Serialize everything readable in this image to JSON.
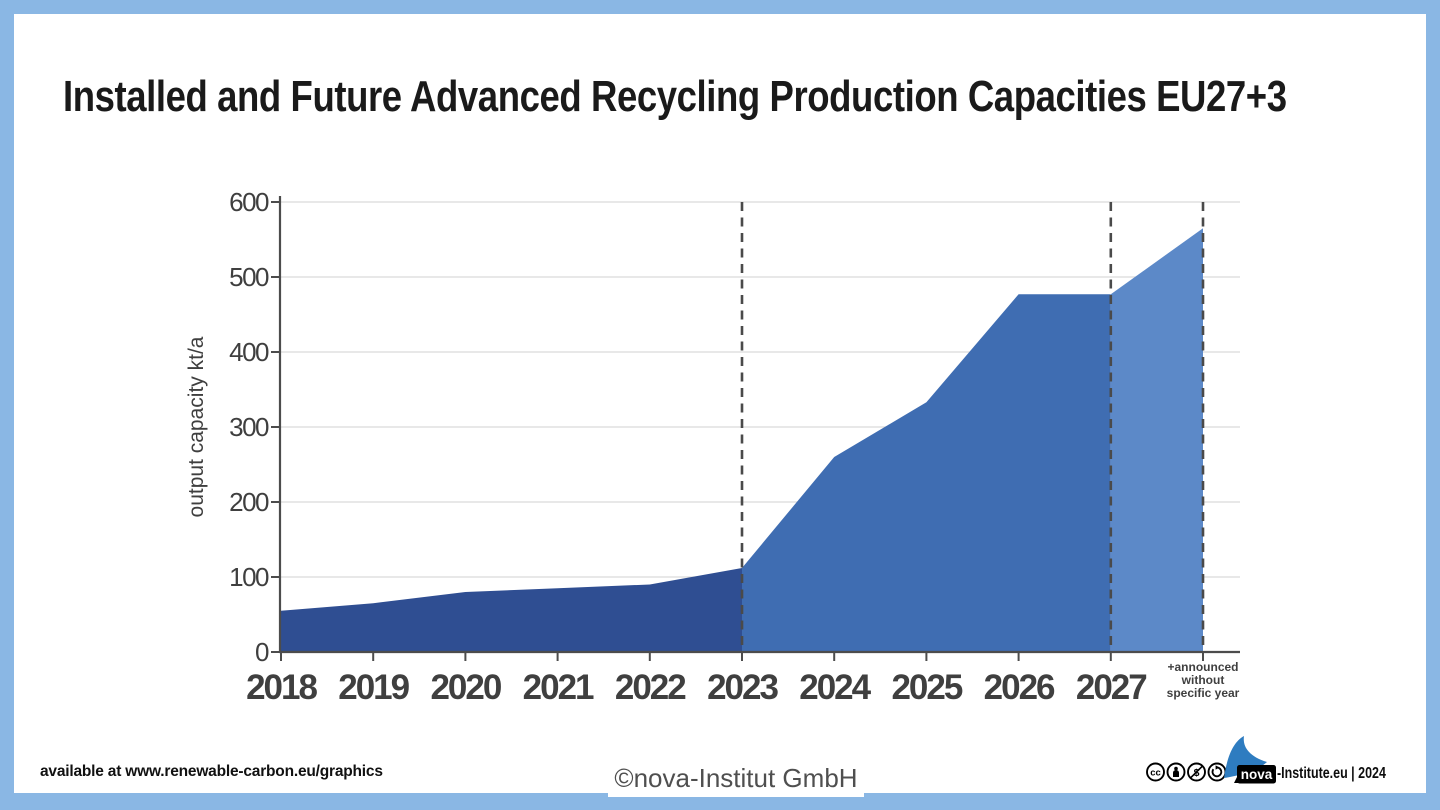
{
  "header": {
    "title": "Installed and Future Advanced Recycling Production Capacities EU27+3"
  },
  "chart_data": {
    "type": "area",
    "title": "Installed and Future Advanced Recycling Production Capacities EU27+3",
    "xlabel": "",
    "ylabel": "output capacity kt/a",
    "ylim": [
      0,
      600
    ],
    "yticks": [
      0,
      100,
      200,
      300,
      400,
      500,
      600
    ],
    "grid": "horizontal",
    "legend": "none",
    "categories": [
      "2018",
      "2019",
      "2020",
      "2021",
      "2022",
      "2023",
      "2024",
      "2025",
      "2026",
      "2027",
      "+announced\nwithout\nspecific year"
    ],
    "values": [
      55,
      65,
      80,
      85,
      90,
      112,
      260,
      333,
      477,
      477,
      565
    ],
    "segments": [
      {
        "name": "installed-2018-2023",
        "from": 0,
        "to": 5,
        "color": "#2f4e92"
      },
      {
        "name": "future-2023-2027",
        "from": 5,
        "to": 9,
        "color": "#3f6db2"
      },
      {
        "name": "announced-without-specific-year",
        "from": 9,
        "to": 10,
        "color": "#5c89c8"
      }
    ],
    "dashed_marker_indices": [
      5,
      9,
      10
    ],
    "colors": {
      "grid": "#d9d9d9",
      "axis": "#4c4c4c",
      "tick_label": "#3f3f3f",
      "dashed": "#4a4a4a"
    }
  },
  "footer": {
    "available_note": "available at www.renewable-carbon.eu/graphics",
    "watermark": "©nova-Institut GmbH",
    "license_icons": [
      "cc",
      "by",
      "nc",
      "sa"
    ],
    "brand": {
      "nova_label": "nova",
      "suffix": "-Institute.eu | 2024"
    }
  },
  "colors": {
    "frame": "#8ab7e4",
    "canvas": "#ffffff",
    "title": "#1a1a1a",
    "swoosh": "#2e7cc0"
  }
}
